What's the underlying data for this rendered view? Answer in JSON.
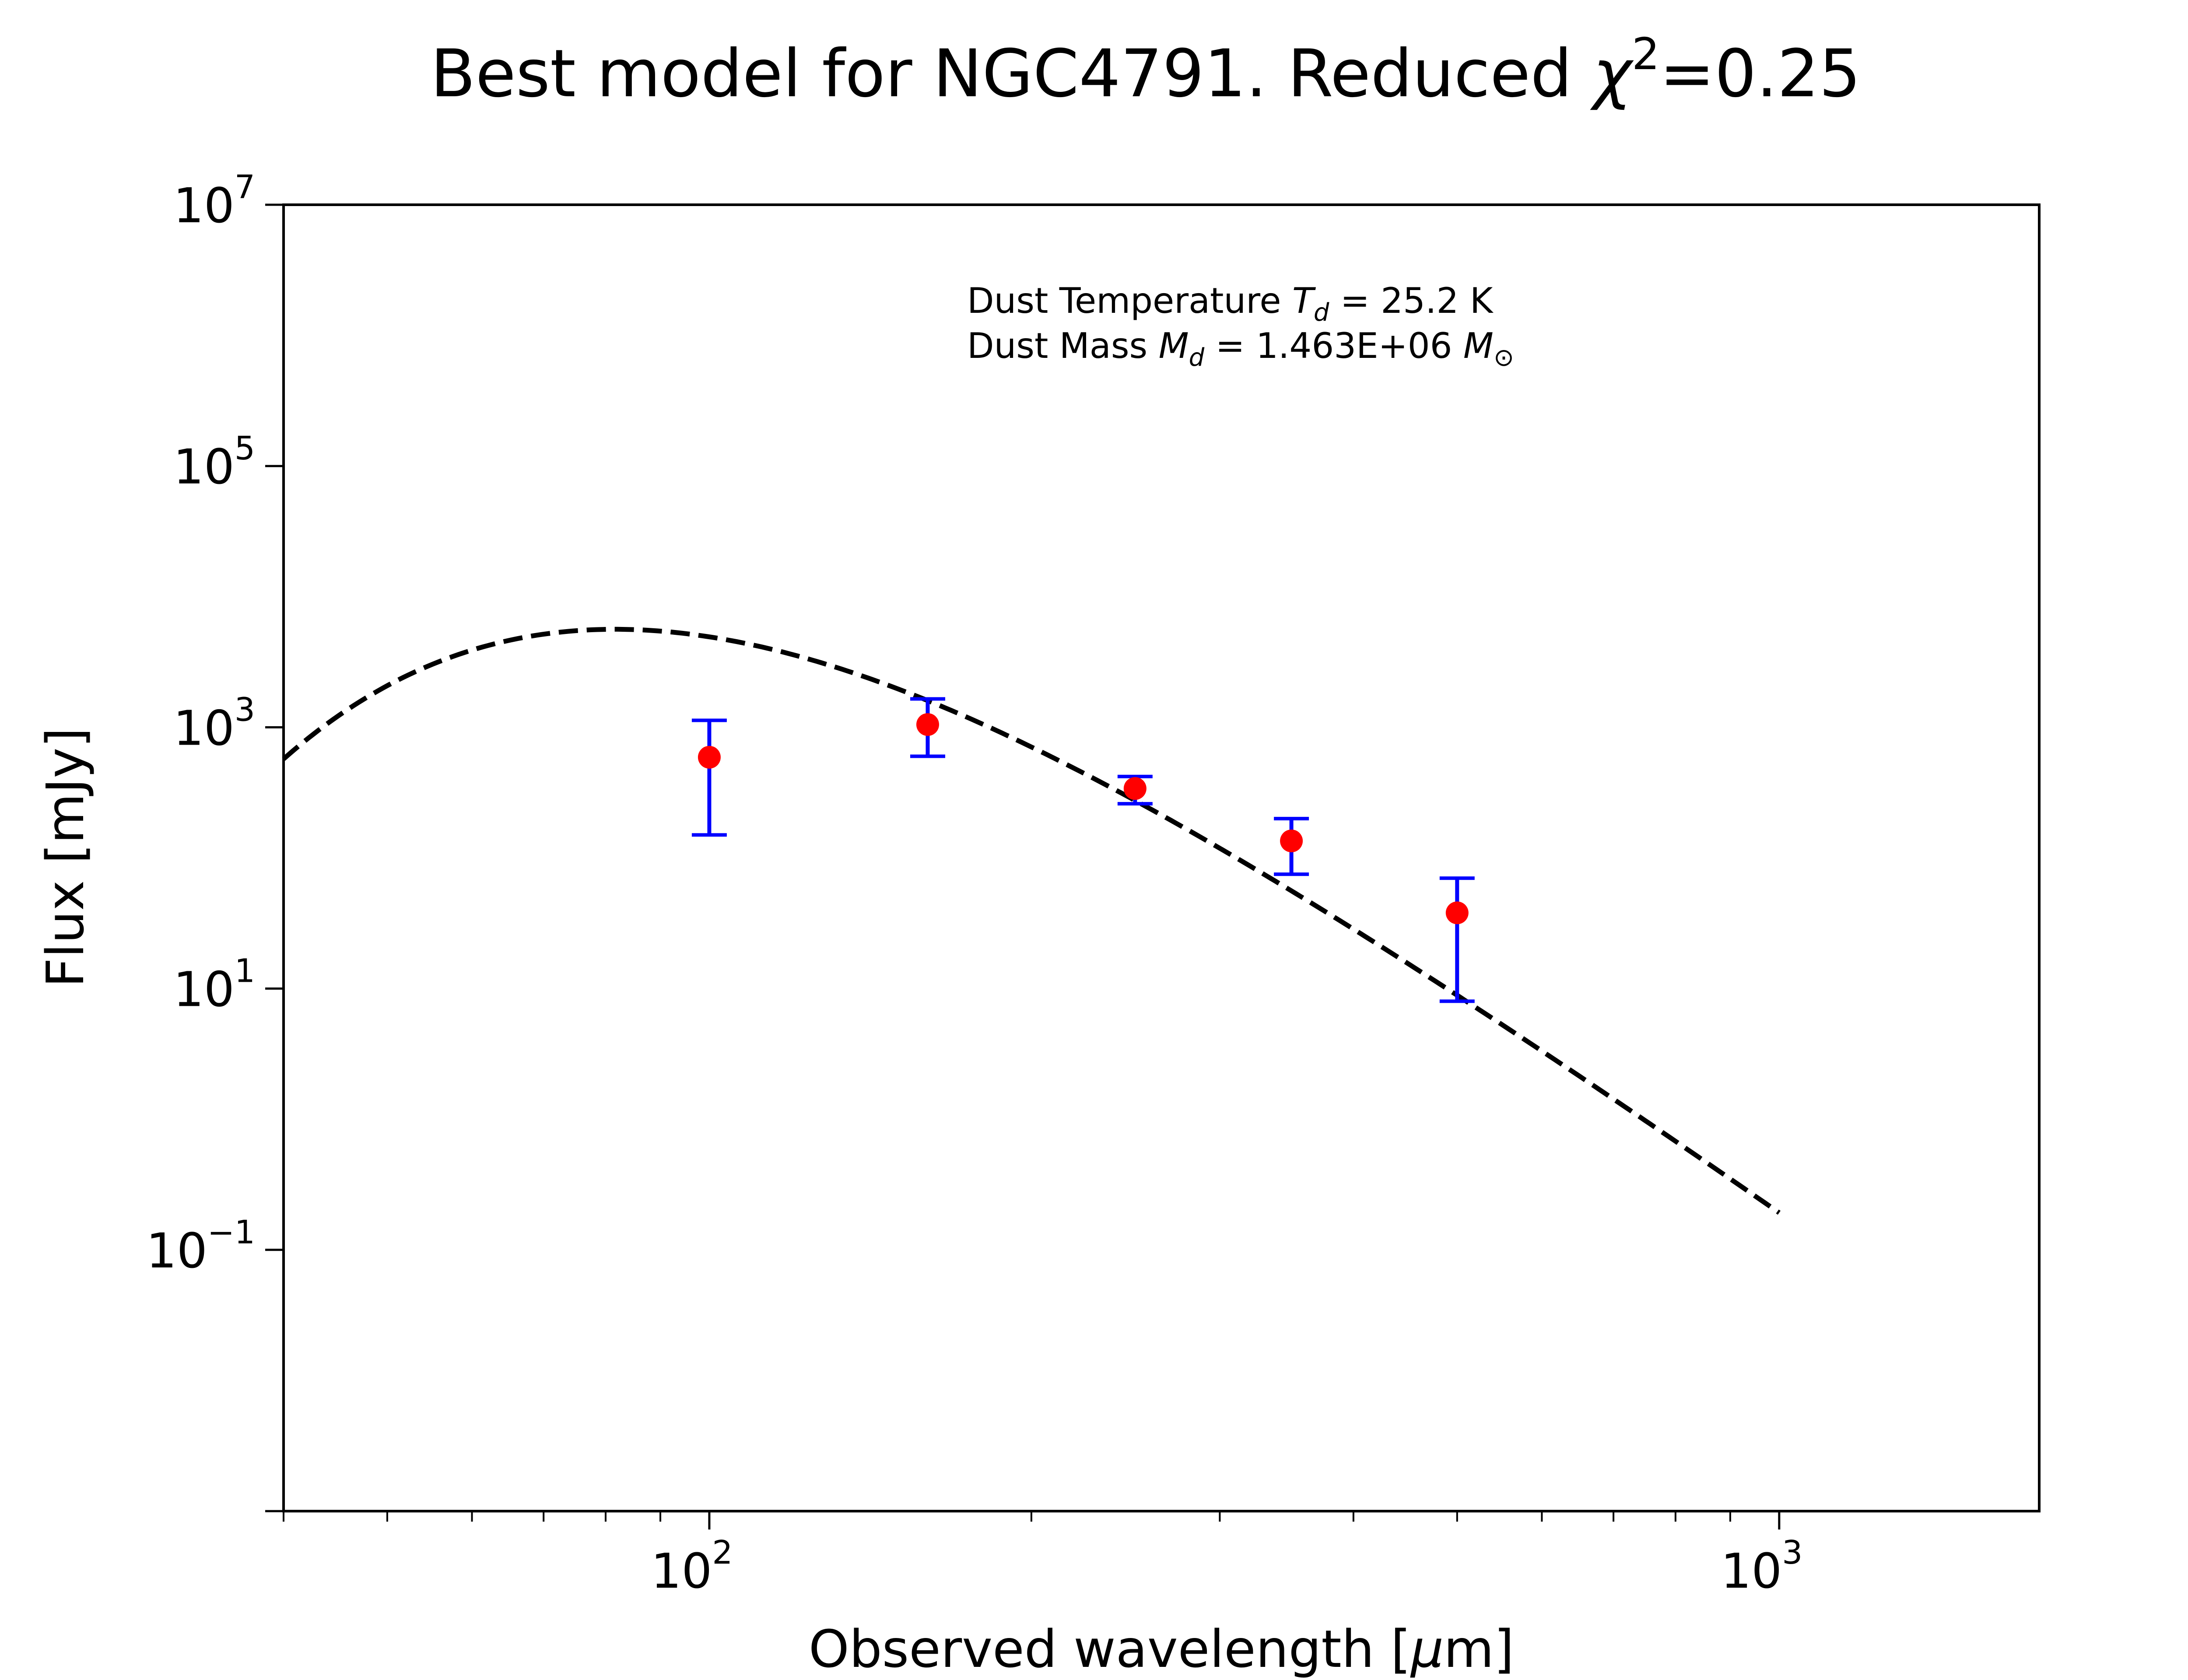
{
  "chart_data": {
    "type": "scatter",
    "title": {
      "main": "Best model for NGC4791. Reduced ",
      "chi": "χ",
      "chi_exp": "2",
      "value": "=0.25"
    },
    "xlabel": {
      "text": "Observed wavelength [",
      "mu": "μ",
      "unit": "m]"
    },
    "ylabel": "Flux [mJy]",
    "xscale": "log",
    "yscale": "log",
    "xlim": [
      40,
      1750
    ],
    "ylim": [
      0.001,
      10000000
    ],
    "x_ticks": [
      {
        "value": 100,
        "base": "10",
        "exp": "2"
      },
      {
        "value": 1000,
        "base": "10",
        "exp": "3"
      }
    ],
    "y_ticks": [
      {
        "value": 0.1,
        "base": "10",
        "exp": "−1"
      },
      {
        "value": 10,
        "base": "10",
        "exp": "1"
      },
      {
        "value": 1000,
        "base": "10",
        "exp": "3"
      },
      {
        "value": 100000,
        "base": "10",
        "exp": "5"
      },
      {
        "value": 10000000,
        "base": "10",
        "exp": "7"
      }
    ],
    "annotation": {
      "line1_prefix": "Dust Temperature ",
      "line1_sym": "T",
      "line1_sub": "d",
      "line1_suffix": " = 25.2 K",
      "line2_prefix": "Dust Mass ",
      "line2_sym": "M",
      "line2_sub": "d",
      "line2_mid": " = 1.463E+06 ",
      "line2_unit": "M",
      "line2_unit_sub": "⊙"
    },
    "series": [
      {
        "kind": "observed",
        "marker_color": "#ff0000",
        "error_color": "#0000ff",
        "points": [
          {
            "x": 100,
            "y": 590,
            "yerr_low": 150,
            "yerr_high": 1130
          },
          {
            "x": 160,
            "y": 1050,
            "yerr_low": 600,
            "yerr_high": 1650
          },
          {
            "x": 250,
            "y": 340,
            "yerr_low": 260,
            "yerr_high": 420
          },
          {
            "x": 350,
            "y": 135,
            "yerr_low": 75,
            "yerr_high": 200
          },
          {
            "x": 500,
            "y": 38,
            "yerr_low": 8,
            "yerr_high": 70
          }
        ]
      },
      {
        "kind": "model",
        "line_color": "#000000",
        "line_style": "dashed",
        "temperature_K": 25.2,
        "x_range": [
          40,
          1000
        ]
      }
    ]
  }
}
